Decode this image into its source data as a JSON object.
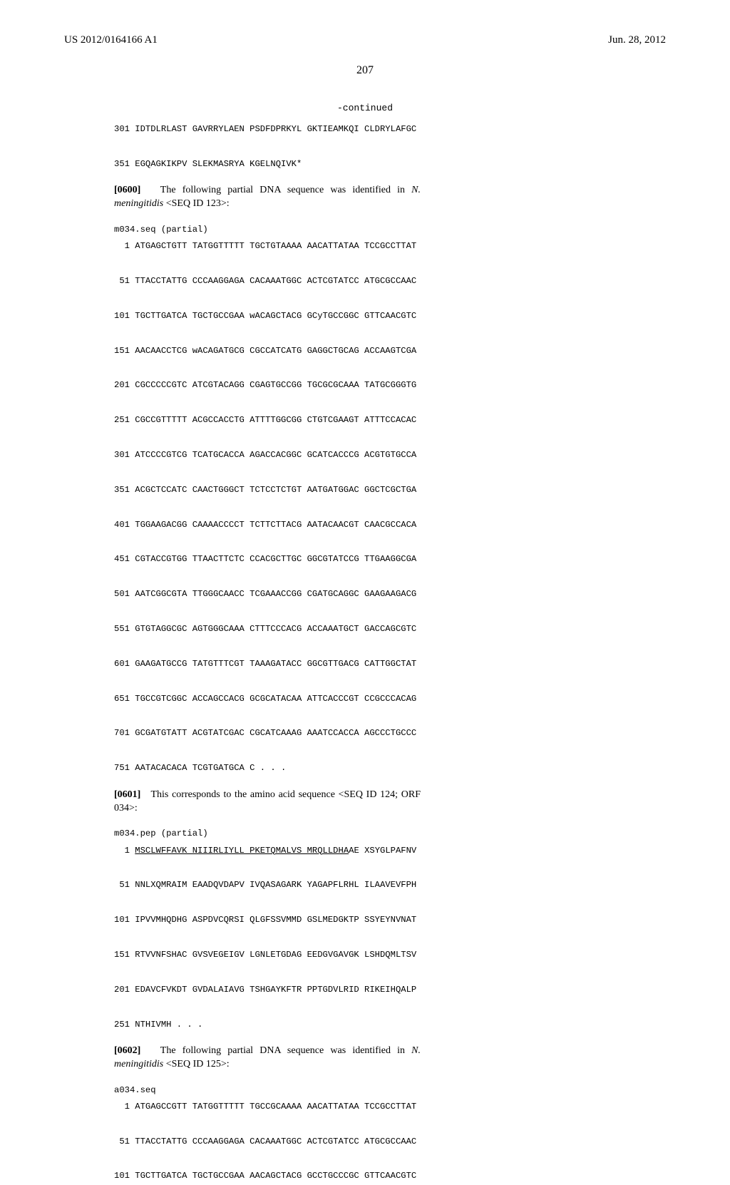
{
  "header": {
    "pub_number": "US 2012/0164166 A1",
    "pub_date": "Jun. 28, 2012"
  },
  "page_number": "207",
  "continued_label": "-continued",
  "block_a": {
    "lines": [
      "301 IDTDLRLAST GAVRRYLAEN PSDFDPRKYL GKTIEAMKQI CLDRYLAFGC",
      "351 EGQAGKIKPV SLEKMASRYA KGELNQIVK*"
    ]
  },
  "para_0600": {
    "num": "[0600]",
    "text_before": "The following partial DNA sequence was identified in ",
    "organism": "N. meningitidis",
    "text_after": " <SEQ ID 123>:"
  },
  "block_m034_seq": {
    "label": "m034.seq (partial)",
    "lines": [
      "  1 ATGAGCTGTT TATGGTTTTT TGCTGTAAAA AACATTATAA TCCGCCTTAT",
      " 51 TTACCTATTG CCCAAGGAGA CACAAATGGC ACTCGTATCC ATGCGCCAAC",
      "101 TGCTTGATCA TGCTGCCGAA wACAGCTACG GCyTGCCGGC GTTCAACGTC",
      "151 AACAACCTCG wACAGATGCG CGCCATCATG GAGGCTGCAG ACCAAGTCGA",
      "201 CGCCCCCGTC ATCGTACAGG CGAGTGCCGG TGCGCGCAAA TATGCGGGTG",
      "251 CGCCGTTTTT ACGCCACCTG ATTTTGGCGG CTGTCGAAGT ATTTCCACAC",
      "301 ATCCCCGTCG TCATGCACCA AGACCACGGC GCATCACCCG ACGTGTGCCA",
      "351 ACGCTCCATC CAACTGGGCT TCTCCTCTGT AATGATGGAC GGCTCGCTGA",
      "401 TGGAAGACGG CAAAACCCCT TCTTCTTACG AATACAACGT CAACGCCACA",
      "451 CGTACCGTGG TTAACTTCTC CCACGCTTGC GGCGTATCCG TTGAAGGCGA",
      "501 AATCGGCGTA TTGGGCAACC TCGAAACCGG CGATGCAGGC GAAGAAGACG",
      "551 GTGTAGGCGC AGTGGGCAAA CTTTCCCACG ACCAAATGCT GACCAGCGTC",
      "601 GAAGATGCCG TATGTTTCGT TAAAGATACC GGCGTTGACG CATTGGCTAT",
      "651 TGCCGTCGGC ACCAGCCACG GCGCATACAA ATTCACCCGT CCGCCCACAG",
      "701 GCGATGTATT ACGTATCGAC CGCATCAAAG AAATCCACCA AGCCCTGCCC",
      "751 AATACACACA TCGTGATGCA C . . ."
    ]
  },
  "para_0601": {
    "num": "[0601]",
    "text": "This corresponds to the amino acid sequence <SEQ ID 124; ORF 034>:"
  },
  "block_m034_pep": {
    "label": "m034.pep (partial)",
    "line1_num": "  1 ",
    "line1_underlined": "MSCLWFFAVK NIIIRLIYLL PKETQMALVS MRQLLDHA",
    "line1_rest": "AE XSYGLPAFNV",
    "lines": [
      " 51 NNLXQMRAIM EAADQVDAPV IVQASAGARK YAGAPFLRHL ILAAVEVFPH",
      "101 IPVVMHQDHG ASPDVCQRSI QLGFSSVMMD GSLMEDGKTP SSYEYNVNAT",
      "151 RTVVNFSHAC GVSVEGEIGV LGNLETGDAG EEDGVGAVGK LSHDQMLTSV",
      "201 EDAVCFVKDT GVDALAIAVG TSHGAYKFTR PPTGDVLRID RIKEIHQALP",
      "251 NTHIVMH . . ."
    ]
  },
  "para_0602": {
    "num": "[0602]",
    "text_before": "The following partial DNA sequence was identified in ",
    "organism": "N. meningitidis",
    "text_after": " <SEQ ID 125>:"
  },
  "block_a034_seq": {
    "label": "a034.seq",
    "lines": [
      "  1 ATGAGCCGTT TATGGTTTTT TGCCGCAAAA AACATTATAA TCCGCCTTAT",
      " 51 TTACCTATTG CCCAAGGAGA CACAAATGGC ACTCGTATCC ATGCGCCAAC",
      "101 TGCTTGATCA TGCTGCCGAA AACAGCTACG GCCTGCCCGC GTTCAACGTC"
    ]
  }
}
